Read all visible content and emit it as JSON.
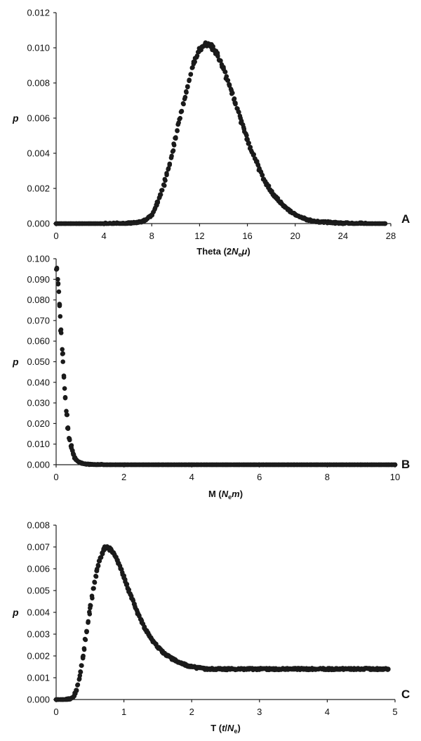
{
  "chart_data": [
    {
      "type": "scatter",
      "panel": "A",
      "ylabel": "p",
      "xlabel": {
        "prefix": "Theta (2",
        "italic_n": "N",
        "sub": "e",
        "italic_u": "μ",
        "suffix": ")"
      },
      "xlim": [
        0,
        28
      ],
      "ylim": [
        0,
        0.012
      ],
      "xticks": [
        0,
        4,
        8,
        12,
        16,
        20,
        24,
        28
      ],
      "yticks": [
        "0.000",
        "0.002",
        "0.004",
        "0.006",
        "0.008",
        "0.010",
        "0.012"
      ],
      "series": [
        {
          "x": [
            0,
            2,
            4,
            6,
            7,
            7.5,
            8,
            8.5,
            9,
            9.5,
            10,
            10.5,
            11,
            11.5,
            12,
            12.5,
            13,
            13.5,
            14,
            14.5,
            15,
            15.5,
            16,
            16.5,
            17,
            17.5,
            18,
            19,
            20,
            21,
            22,
            24,
            26,
            27.5
          ],
          "y": [
            0,
            0,
            0,
            1e-05,
            8e-05,
            0.0002,
            0.0005,
            0.0012,
            0.0022,
            0.0034,
            0.0049,
            0.0064,
            0.0078,
            0.0091,
            0.0099,
            0.0102,
            0.0101,
            0.0096,
            0.0088,
            0.0079,
            0.0068,
            0.0058,
            0.0048,
            0.0039,
            0.0031,
            0.0024,
            0.0018,
            0.001,
            0.0005,
            0.00022,
            0.0001,
            2e-05,
            0,
            0
          ]
        }
      ]
    },
    {
      "type": "scatter",
      "panel": "B",
      "ylabel": "p",
      "xlabel": {
        "prefix": "M (",
        "italic_n": "N",
        "sub": "e",
        "italic_m": "m",
        "suffix": ")"
      },
      "xlim": [
        0,
        10
      ],
      "ylim": [
        0,
        0.1
      ],
      "xticks": [
        0,
        2,
        4,
        6,
        8,
        10
      ],
      "yticks": [
        "0.000",
        "0.010",
        "0.020",
        "0.030",
        "0.040",
        "0.050",
        "0.060",
        "0.070",
        "0.080",
        "0.090",
        "0.100"
      ],
      "series": [
        {
          "x": [
            0.02,
            0.05,
            0.08,
            0.1,
            0.12,
            0.15,
            0.18,
            0.2,
            0.25,
            0.3,
            0.35,
            0.4,
            0.45,
            0.5,
            0.55,
            0.6,
            0.7,
            0.8,
            0.9,
            1.0,
            1.2,
            1.5,
            2,
            3,
            4,
            5,
            6,
            7,
            8,
            9,
            10
          ],
          "y": [
            0.095,
            0.09,
            0.084,
            0.078,
            0.072,
            0.064,
            0.056,
            0.05,
            0.037,
            0.026,
            0.018,
            0.012,
            0.0082,
            0.0055,
            0.0036,
            0.0024,
            0.0011,
            0.0005,
            0.0002,
            0.0001,
            2e-05,
            0,
            0,
            0,
            0,
            0,
            0,
            0,
            0,
            0,
            0
          ]
        }
      ]
    },
    {
      "type": "scatter",
      "panel": "C",
      "ylabel": "p",
      "xlabel": {
        "prefix": "T (",
        "italic_t": "t",
        "slash": "/",
        "italic_n": "N",
        "sub": "e",
        "suffix": ")"
      },
      "xlim": [
        0,
        5
      ],
      "ylim": [
        0,
        0.008
      ],
      "xticks": [
        0,
        1,
        2,
        3,
        4,
        5
      ],
      "yticks": [
        "0.000",
        "0.001",
        "0.002",
        "0.003",
        "0.004",
        "0.005",
        "0.006",
        "0.007",
        "0.008"
      ],
      "series": [
        {
          "x": [
            0,
            0.1,
            0.2,
            0.25,
            0.3,
            0.35,
            0.4,
            0.45,
            0.5,
            0.55,
            0.6,
            0.65,
            0.7,
            0.75,
            0.8,
            0.85,
            0.9,
            0.95,
            1.0,
            1.1,
            1.2,
            1.3,
            1.4,
            1.5,
            1.6,
            1.7,
            1.8,
            1.9,
            2.0,
            2.2,
            2.5,
            3,
            3.5,
            4,
            4.5,
            4.9
          ],
          "y": [
            0,
            0,
            3e-05,
            0.0001,
            0.0004,
            0.0011,
            0.002,
            0.0031,
            0.0042,
            0.0051,
            0.0059,
            0.0065,
            0.0069,
            0.007,
            0.0069,
            0.0067,
            0.0064,
            0.006,
            0.0056,
            0.0048,
            0.004,
            0.0033,
            0.0028,
            0.0024,
            0.0021,
            0.0019,
            0.0017,
            0.0016,
            0.0015,
            0.0014,
            0.0014,
            0.0014,
            0.0014,
            0.0014,
            0.0014,
            0.0014
          ]
        }
      ]
    }
  ]
}
